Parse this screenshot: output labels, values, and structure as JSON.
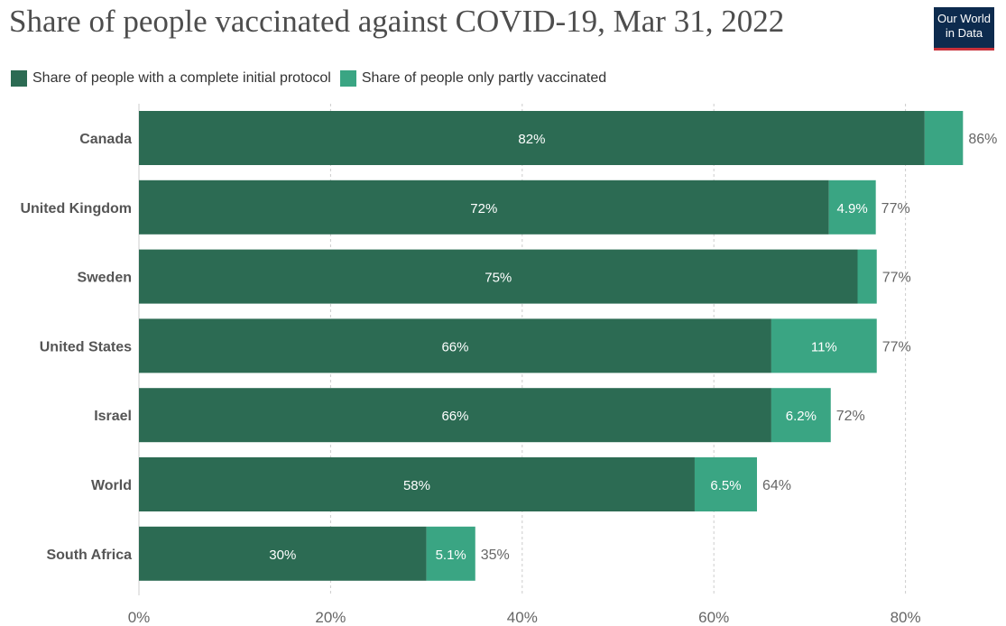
{
  "title": "Share of people vaccinated against COVID-19, Mar 31, 2022",
  "logo": {
    "line1": "Our World",
    "line2": "in Data"
  },
  "colors": {
    "complete": "#2c6b53",
    "partial": "#3aa583",
    "gridline": "#cccccc",
    "text": "#555555"
  },
  "chart_data": {
    "type": "bar",
    "orientation": "horizontal",
    "stacked": true,
    "categories": [
      "Canada",
      "United Kingdom",
      "Sweden",
      "United States",
      "Israel",
      "World",
      "South Africa"
    ],
    "series": [
      {
        "name": "Share of people with a complete initial protocol",
        "values": [
          82,
          72,
          75,
          66,
          66,
          58,
          30
        ],
        "labels": [
          "82%",
          "72%",
          "75%",
          "66%",
          "66%",
          "58%",
          "30%"
        ]
      },
      {
        "name": "Share of people only partly vaccinated",
        "values": [
          4,
          4.9,
          2,
          11,
          6.2,
          6.5,
          5.1
        ],
        "labels": [
          "",
          "4.9%",
          "",
          "11%",
          "6.2%",
          "6.5%",
          "5.1%"
        ]
      }
    ],
    "totals": [
      "86%",
      "77%",
      "77%",
      "77%",
      "72%",
      "64%",
      "35%"
    ],
    "xlim": [
      0,
      86
    ],
    "xticks": [
      0,
      20,
      40,
      60,
      80
    ],
    "xtick_labels": [
      "0%",
      "20%",
      "40%",
      "60%",
      "80%"
    ],
    "grid": "vertical dashed",
    "legend": "top-left"
  }
}
